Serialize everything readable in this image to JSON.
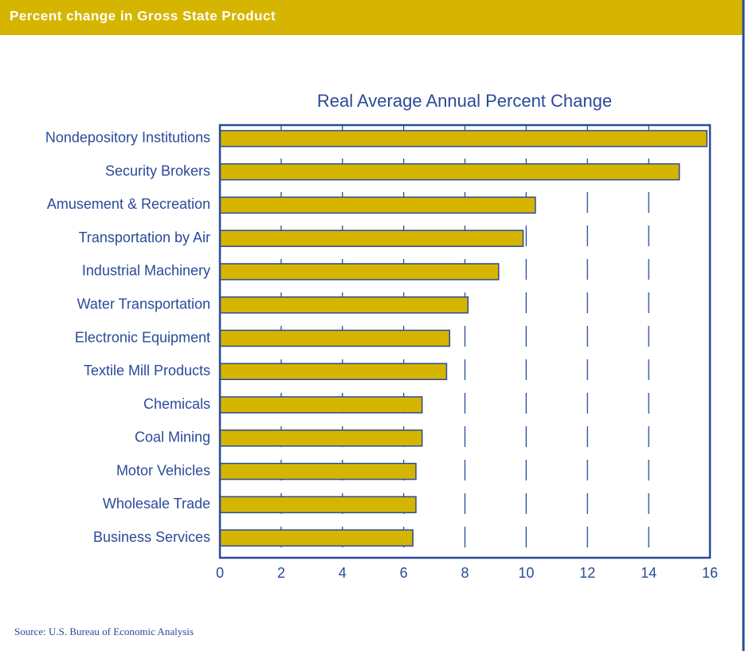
{
  "header": {
    "title": "Percent change in Gross State Product"
  },
  "chart_data": {
    "type": "bar",
    "orientation": "horizontal",
    "title": "Real Average Annual Percent Change",
    "categories": [
      "Nondepository Institutions",
      "Security Brokers",
      "Amusement & Recreation",
      "Transportation by Air",
      "Industrial Machinery",
      "Water Transportation",
      "Electronic Equipment",
      "Textile Mill Products",
      "Chemicals",
      "Coal Mining",
      "Motor Vehicles",
      "Wholesale Trade",
      "Business Services"
    ],
    "values": [
      15.9,
      15.0,
      10.3,
      9.9,
      9.1,
      8.1,
      7.5,
      7.4,
      6.6,
      6.6,
      6.4,
      6.4,
      6.3
    ],
    "color": "#d6b500",
    "xlim": [
      0,
      16
    ],
    "xticks": [
      0,
      2,
      4,
      6,
      8,
      10,
      12,
      14,
      16
    ],
    "grid": true
  },
  "source": "Source: U.S. Bureau of Economic Analysis"
}
